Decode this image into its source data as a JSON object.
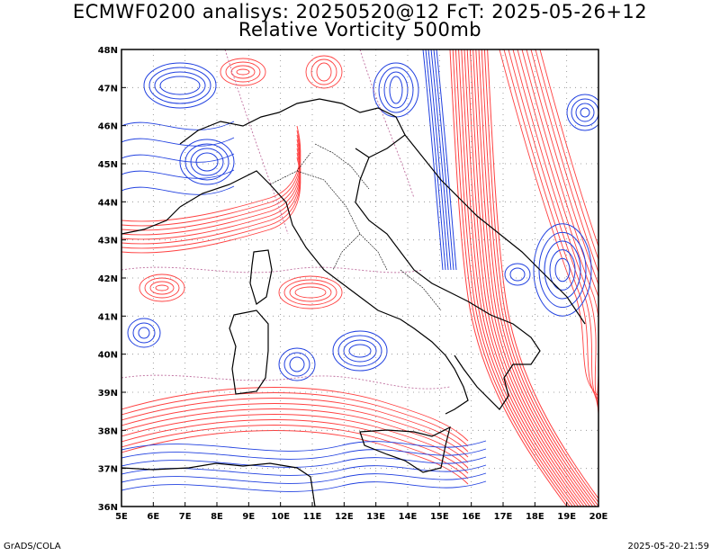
{
  "title": {
    "line1": "ECMWF0200 analisys: 20250520@12 FcT: 2025-05-26+12",
    "line2": "Relative Vorticity 500mb"
  },
  "map": {
    "lon_range": [
      5,
      20
    ],
    "lat_range": [
      36,
      48
    ],
    "lon_ticks": [
      "5E",
      "6E",
      "7E",
      "8E",
      "9E",
      "10E",
      "11E",
      "12E",
      "13E",
      "14E",
      "15E",
      "16E",
      "17E",
      "18E",
      "19E",
      "20E"
    ],
    "lat_ticks": [
      "36N",
      "37N",
      "38N",
      "39N",
      "40N",
      "41N",
      "42N",
      "43N",
      "44N",
      "45N",
      "46N",
      "47N",
      "48N"
    ],
    "grid": "dotted",
    "colors": {
      "positive": "#ff4040",
      "negative": "#2040e0",
      "zero": "#c070a0",
      "coast": "#000000",
      "grid": "#888888"
    }
  },
  "footer": {
    "credit": "GrADS/COLA",
    "timestamp": "2025-05-20-21:59"
  }
}
